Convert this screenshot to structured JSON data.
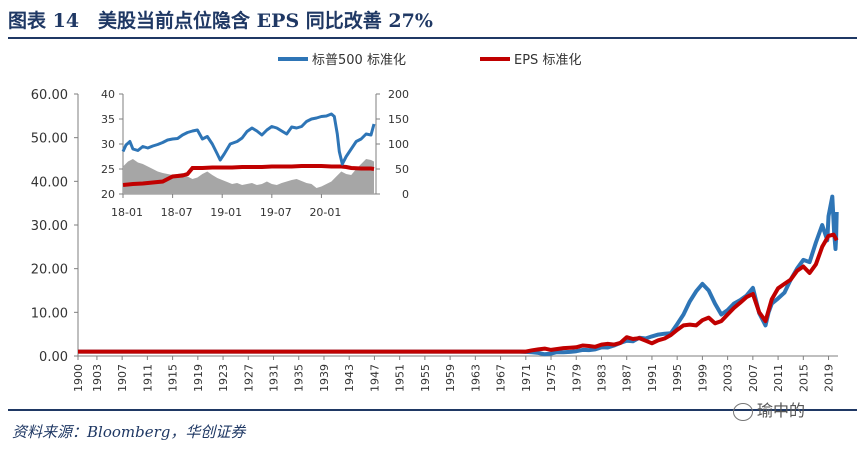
{
  "header": {
    "title": "图表 14　美股当前点位隐含 EPS 同比改善 27%"
  },
  "footer": {
    "source": "资料来源：Bloomberg，华创证券",
    "watermark": "瑜中的"
  },
  "colors": {
    "sp500": "#2e75b6",
    "eps": "#c00000",
    "inset_area": "#a6a6a6",
    "title": "#1f3864"
  },
  "chart_data": [
    {
      "id": "main",
      "type": "line",
      "xlabel": "",
      "ylabel": "",
      "xlim": [
        1900,
        2020.5
      ],
      "ylim": [
        0,
        60
      ],
      "yticks": [
        "0.00",
        "10.00",
        "20.00",
        "30.00",
        "40.00",
        "50.00",
        "60.00"
      ],
      "xticks": [
        "1900",
        "1903",
        "1907",
        "1911",
        "1915",
        "1919",
        "1923",
        "1927",
        "1931",
        "1935",
        "1939",
        "1943",
        "1947",
        "1951",
        "1955",
        "1959",
        "1963",
        "1967",
        "1971",
        "1975",
        "1979",
        "1983",
        "1987",
        "1991",
        "1995",
        "1999",
        "2003",
        "2007",
        "2011",
        "2015",
        "2019"
      ],
      "legend_position": "top-right",
      "series": [
        {
          "name": "标普500 标准化",
          "x": [
            1900,
            1970,
            1971,
            1972,
            1973,
            1974,
            1975,
            1976,
            1977,
            1978,
            1979,
            1980,
            1981,
            1982,
            1983,
            1984,
            1985,
            1986,
            1987,
            1988,
            1989,
            1990,
            1991,
            1992,
            1993,
            1994,
            1995,
            1996,
            1997,
            1998,
            1999,
            2000,
            2001,
            2002,
            2003,
            2004,
            2005,
            2006,
            2007,
            2008,
            2009,
            2009.5,
            2010,
            2011,
            2012,
            2013,
            2014,
            2015,
            2016,
            2017,
            2018,
            2018.8,
            2019,
            2019.6,
            2019.9,
            2020.1,
            2020.2,
            2020.3
          ],
          "y": [
            1.0,
            1.0,
            0.95,
            0.85,
            0.7,
            0.4,
            0.55,
            0.9,
            0.85,
            0.95,
            1.1,
            1.4,
            1.35,
            1.5,
            2.0,
            1.95,
            2.4,
            3.0,
            3.5,
            3.4,
            4.2,
            4.0,
            4.5,
            4.9,
            5.1,
            5.2,
            7.3,
            9.5,
            12.5,
            14.8,
            16.5,
            15.0,
            12.0,
            9.5,
            10.5,
            12.0,
            12.8,
            13.8,
            15.6,
            9.8,
            7.0,
            10.0,
            12.0,
            13.2,
            14.5,
            17.5,
            20.0,
            22.0,
            21.5,
            26.0,
            30.0,
            26.5,
            32.0,
            36.5,
            28.0,
            24.5,
            27.0,
            33.0
          ]
        },
        {
          "name": "EPS 标准化",
          "x": [
            1900,
            1971,
            1972,
            1973,
            1974,
            1975,
            1976,
            1977,
            1978,
            1979,
            1980,
            1981,
            1982,
            1983,
            1984,
            1985,
            1986,
            1987,
            1988,
            1989,
            1990,
            1991,
            1992,
            1993,
            1994,
            1995,
            1996,
            1997,
            1998,
            1999,
            2000,
            2001,
            2002,
            2003,
            2004,
            2005,
            2006,
            2007,
            2008,
            2009,
            2010,
            2011,
            2012,
            2013,
            2014,
            2015,
            2016,
            2017,
            2018,
            2019,
            2019.8,
            2020.1,
            2020.3
          ],
          "y": [
            1.0,
            1.0,
            1.3,
            1.5,
            1.7,
            1.4,
            1.6,
            1.8,
            1.9,
            2.0,
            2.4,
            2.3,
            2.1,
            2.6,
            2.8,
            2.6,
            3.0,
            4.3,
            3.9,
            4.1,
            3.5,
            2.9,
            3.6,
            4.0,
            4.8,
            6.0,
            7.0,
            7.2,
            7.0,
            8.2,
            8.8,
            7.5,
            8.0,
            9.5,
            11.0,
            12.2,
            13.5,
            14.2,
            10.0,
            8.0,
            13.0,
            15.5,
            16.5,
            17.5,
            19.5,
            20.5,
            19.0,
            21.0,
            25.0,
            27.5,
            27.8,
            27.0,
            26.5
          ]
        }
      ]
    },
    {
      "id": "inset",
      "type": "line",
      "xlim": [
        2018.0,
        2020.55
      ],
      "ylim_left": [
        20,
        40
      ],
      "ylim_right": [
        0,
        200
      ],
      "yticks_left": [
        "20",
        "25",
        "30",
        "35",
        "40"
      ],
      "yticks_right": [
        "0",
        "50",
        "100",
        "150",
        "200"
      ],
      "xticks": [
        "18-01",
        "18-07",
        "19-01",
        "19-07",
        "20-01"
      ],
      "series": [
        {
          "name": "标普500 标准化",
          "axis": "left",
          "x": [
            2018.0,
            2018.03,
            2018.07,
            2018.1,
            2018.15,
            2018.2,
            2018.25,
            2018.3,
            2018.35,
            2018.4,
            2018.45,
            2018.5,
            2018.55,
            2018.6,
            2018.65,
            2018.7,
            2018.75,
            2018.8,
            2018.85,
            2018.9,
            2018.95,
            2018.98,
            2019.02,
            2019.08,
            2019.15,
            2019.2,
            2019.25,
            2019.3,
            2019.35,
            2019.4,
            2019.45,
            2019.5,
            2019.55,
            2019.6,
            2019.65,
            2019.7,
            2019.75,
            2019.8,
            2019.85,
            2019.9,
            2019.95,
            2020.0,
            2020.05,
            2020.1,
            2020.13,
            2020.16,
            2020.18,
            2020.21,
            2020.25,
            2020.3,
            2020.35,
            2020.4,
            2020.45,
            2020.5,
            2020.53
          ],
          "y": [
            28.5,
            29.8,
            30.5,
            29.0,
            28.7,
            29.5,
            29.2,
            29.6,
            29.9,
            30.3,
            30.8,
            31.0,
            31.1,
            31.8,
            32.3,
            32.6,
            32.8,
            31.0,
            31.5,
            30.0,
            28.0,
            26.8,
            28.0,
            30.0,
            30.5,
            31.2,
            32.5,
            33.2,
            32.6,
            31.8,
            32.8,
            33.5,
            33.2,
            32.6,
            32.0,
            33.4,
            33.2,
            33.5,
            34.5,
            35.0,
            35.2,
            35.5,
            35.6,
            36.0,
            35.5,
            32.0,
            28.5,
            26.0,
            27.5,
            29.0,
            30.5,
            31.0,
            32.0,
            31.8,
            34.0
          ]
        },
        {
          "name": "EPS 标准化",
          "axis": "right",
          "x": [
            2018.0,
            2018.1,
            2018.2,
            2018.3,
            2018.4,
            2018.5,
            2018.6,
            2018.65,
            2018.7,
            2018.8,
            2018.9,
            2019.0,
            2019.1,
            2019.2,
            2019.3,
            2019.4,
            2019.5,
            2019.6,
            2019.7,
            2019.8,
            2019.9,
            2020.0,
            2020.1,
            2020.2,
            2020.25,
            2020.3,
            2020.4,
            2020.5,
            2020.53
          ],
          "y": [
            18,
            20,
            21,
            23,
            25,
            35,
            37,
            40,
            52,
            52,
            53,
            53,
            53,
            54,
            54,
            54,
            55,
            55,
            55,
            56,
            56,
            56,
            55,
            55,
            54,
            52,
            51,
            51,
            50
          ]
        },
        {
          "name": "area",
          "axis": "right",
          "kind": "area",
          "x": [
            2018.0,
            2018.05,
            2018.1,
            2018.15,
            2018.2,
            2018.25,
            2018.3,
            2018.35,
            2018.4,
            2018.45,
            2018.5,
            2018.55,
            2018.6,
            2018.65,
            2018.7,
            2018.75,
            2018.8,
            2018.85,
            2018.9,
            2018.95,
            2019.0,
            2019.05,
            2019.1,
            2019.15,
            2019.2,
            2019.25,
            2019.3,
            2019.35,
            2019.4,
            2019.45,
            2019.5,
            2019.55,
            2019.6,
            2019.65,
            2019.7,
            2019.75,
            2019.8,
            2019.85,
            2019.9,
            2019.95,
            2020.0,
            2020.05,
            2020.1,
            2020.15,
            2020.2,
            2020.25,
            2020.3,
            2020.35,
            2020.4,
            2020.45,
            2020.5,
            2020.53
          ],
          "y": [
            55,
            65,
            70,
            63,
            60,
            55,
            50,
            45,
            42,
            40,
            38,
            40,
            42,
            35,
            30,
            33,
            40,
            45,
            38,
            32,
            28,
            24,
            20,
            22,
            18,
            20,
            22,
            18,
            20,
            25,
            20,
            18,
            22,
            25,
            28,
            30,
            26,
            22,
            20,
            12,
            15,
            20,
            25,
            35,
            45,
            40,
            38,
            50,
            60,
            70,
            68,
            65
          ]
        }
      ]
    }
  ]
}
